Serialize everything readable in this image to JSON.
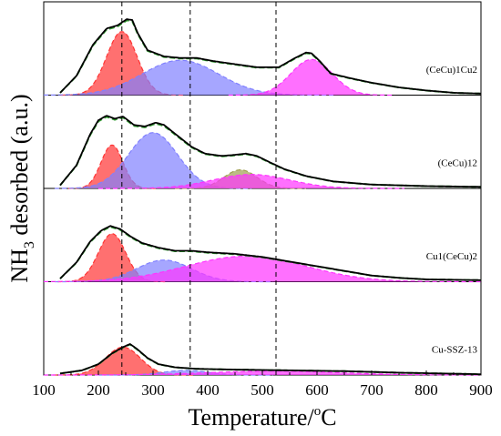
{
  "chart_data": {
    "type": "area",
    "xlabel": "Temperature/°C",
    "xlabel_main": "Temperature/",
    "xlabel_sup": "o",
    "xlabel_unit": "C",
    "ylabel_main": "NH",
    "ylabel_sub": "3",
    "ylabel_rest": " desorbed (a.u.)",
    "xlim": [
      100,
      900
    ],
    "xticks": [
      100,
      200,
      300,
      400,
      500,
      600,
      700,
      800,
      900
    ],
    "ylim": [
      0,
      1
    ],
    "grid": false,
    "reference_lines_x": [
      243,
      368,
      525
    ],
    "peak_colors": {
      "red": "#ff3333",
      "blue": "#8080ff",
      "olive": "#a0a050",
      "magenta": "#ff33ff",
      "measured": "#000000",
      "fit": "#33a033"
    },
    "panels": [
      {
        "label": "(CeCu)1Cu2",
        "measured": [
          [
            130,
            0.03
          ],
          [
            160,
            0.25
          ],
          [
            190,
            0.65
          ],
          [
            215,
            0.86
          ],
          [
            235,
            0.9
          ],
          [
            252,
            0.98
          ],
          [
            262,
            0.97
          ],
          [
            272,
            0.8
          ],
          [
            290,
            0.58
          ],
          [
            320,
            0.5
          ],
          [
            350,
            0.48
          ],
          [
            380,
            0.48
          ],
          [
            410,
            0.44
          ],
          [
            450,
            0.4
          ],
          [
            490,
            0.36
          ],
          [
            530,
            0.36
          ],
          [
            560,
            0.48
          ],
          [
            580,
            0.55
          ],
          [
            590,
            0.54
          ],
          [
            605,
            0.44
          ],
          [
            625,
            0.28
          ],
          [
            660,
            0.22
          ],
          [
            700,
            0.16
          ],
          [
            750,
            0.1
          ],
          [
            800,
            0.06
          ],
          [
            850,
            0.03
          ],
          [
            900,
            0.02
          ]
        ],
        "peaks": [
          {
            "color": "red",
            "center": 243,
            "height": 0.82,
            "width": 28
          },
          {
            "color": "blue",
            "center": 350,
            "height": 0.45,
            "width": 70
          },
          {
            "color": "magenta",
            "center": 590,
            "height": 0.46,
            "width": 38
          }
        ]
      },
      {
        "label": "(CeCu)12",
        "measured": [
          [
            130,
            0.04
          ],
          [
            160,
            0.3
          ],
          [
            185,
            0.7
          ],
          [
            200,
            0.88
          ],
          [
            215,
            0.94
          ],
          [
            230,
            0.9
          ],
          [
            245,
            0.93
          ],
          [
            265,
            0.82
          ],
          [
            285,
            0.8
          ],
          [
            305,
            0.85
          ],
          [
            320,
            0.82
          ],
          [
            345,
            0.68
          ],
          [
            370,
            0.54
          ],
          [
            395,
            0.45
          ],
          [
            425,
            0.42
          ],
          [
            445,
            0.43
          ],
          [
            470,
            0.45
          ],
          [
            490,
            0.42
          ],
          [
            510,
            0.35
          ],
          [
            540,
            0.25
          ],
          [
            580,
            0.16
          ],
          [
            630,
            0.09
          ],
          [
            700,
            0.05
          ],
          [
            800,
            0.03
          ],
          [
            900,
            0.02
          ]
        ],
        "peaks": [
          {
            "color": "red",
            "center": 225,
            "height": 0.56,
            "width": 20
          },
          {
            "color": "blue",
            "center": 300,
            "height": 0.72,
            "width": 45
          },
          {
            "color": "olive",
            "center": 460,
            "height": 0.24,
            "width": 30
          },
          {
            "color": "magenta",
            "center": 480,
            "height": 0.18,
            "width": 70
          }
        ]
      },
      {
        "label": "Cu1(CeCu)2",
        "measured": [
          [
            130,
            0.04
          ],
          [
            160,
            0.25
          ],
          [
            185,
            0.52
          ],
          [
            205,
            0.66
          ],
          [
            222,
            0.72
          ],
          [
            240,
            0.68
          ],
          [
            260,
            0.58
          ],
          [
            280,
            0.5
          ],
          [
            310,
            0.44
          ],
          [
            340,
            0.4
          ],
          [
            370,
            0.4
          ],
          [
            400,
            0.38
          ],
          [
            450,
            0.36
          ],
          [
            500,
            0.32
          ],
          [
            550,
            0.26
          ],
          [
            600,
            0.2
          ],
          [
            650,
            0.14
          ],
          [
            700,
            0.08
          ],
          [
            750,
            0.05
          ],
          [
            800,
            0.03
          ],
          [
            900,
            0.02
          ]
        ],
        "peaks": [
          {
            "color": "red",
            "center": 225,
            "height": 0.62,
            "width": 25
          },
          {
            "color": "blue",
            "center": 320,
            "height": 0.28,
            "width": 50
          },
          {
            "color": "magenta",
            "center": 470,
            "height": 0.33,
            "width": 110
          }
        ]
      },
      {
        "label": "Cu-SSZ-13",
        "measured": [
          [
            130,
            0.02
          ],
          [
            170,
            0.06
          ],
          [
            200,
            0.14
          ],
          [
            225,
            0.28
          ],
          [
            245,
            0.36
          ],
          [
            258,
            0.4
          ],
          [
            270,
            0.34
          ],
          [
            290,
            0.22
          ],
          [
            310,
            0.14
          ],
          [
            340,
            0.1
          ],
          [
            380,
            0.08
          ],
          [
            450,
            0.07
          ],
          [
            550,
            0.06
          ],
          [
            650,
            0.05
          ],
          [
            750,
            0.03
          ],
          [
            900,
            0.01
          ]
        ],
        "peaks": [
          {
            "color": "red",
            "center": 245,
            "height": 0.36,
            "width": 32
          },
          {
            "color": "blue",
            "center": 360,
            "height": 0.06,
            "width": 40
          },
          {
            "color": "magenta",
            "center": 520,
            "height": 0.05,
            "width": 120
          }
        ]
      }
    ]
  }
}
